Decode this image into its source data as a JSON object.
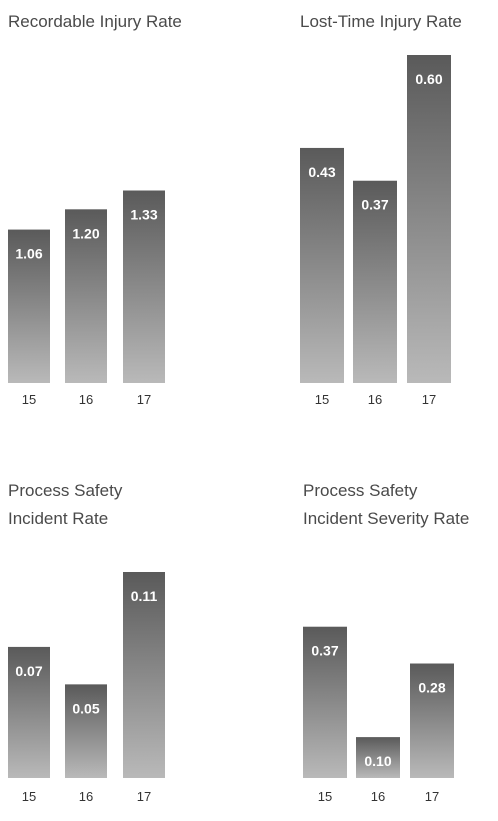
{
  "chart_data": [
    {
      "type": "bar",
      "title": [
        "Recordable Injury Rate"
      ],
      "categories": [
        "15",
        "16",
        "17"
      ],
      "values": [
        1.06,
        1.2,
        1.33
      ],
      "value_labels": [
        "1.06",
        "1.20",
        "1.33"
      ],
      "ylim": [
        0,
        1.9
      ],
      "grid": false,
      "legend": "none"
    },
    {
      "type": "bar",
      "title": [
        "Lost-Time Injury Rate"
      ],
      "categories": [
        "15",
        "16",
        "17"
      ],
      "values": [
        0.43,
        0.37,
        0.6
      ],
      "value_labels": [
        "0.43",
        "0.37",
        "0.60"
      ],
      "ylim": [
        0,
        0.6
      ],
      "grid": false,
      "legend": "none"
    },
    {
      "type": "bar",
      "title": [
        "Process Safety",
        "Incident Rate"
      ],
      "categories": [
        "15",
        "16",
        "17"
      ],
      "values": [
        0.07,
        0.05,
        0.11
      ],
      "value_labels": [
        "0.07",
        "0.05",
        "0.11"
      ],
      "ylim": [
        0,
        0.11
      ],
      "grid": false,
      "legend": "none"
    },
    {
      "type": "bar",
      "title": [
        "Process Safety",
        "Incident Severity Rate"
      ],
      "categories": [
        "15",
        "16",
        "17"
      ],
      "values": [
        0.37,
        0.1,
        0.28
      ],
      "value_labels": [
        "0.37",
        "0.10",
        "0.28"
      ],
      "ylim": [
        0,
        0.45
      ],
      "grid": false,
      "legend": "none"
    }
  ],
  "colors": {
    "bar_top": "#5a5a5a",
    "bar_bottom": "#b9b9b9",
    "bar_label": "#ffffff",
    "text": "#4a4a4a"
  }
}
